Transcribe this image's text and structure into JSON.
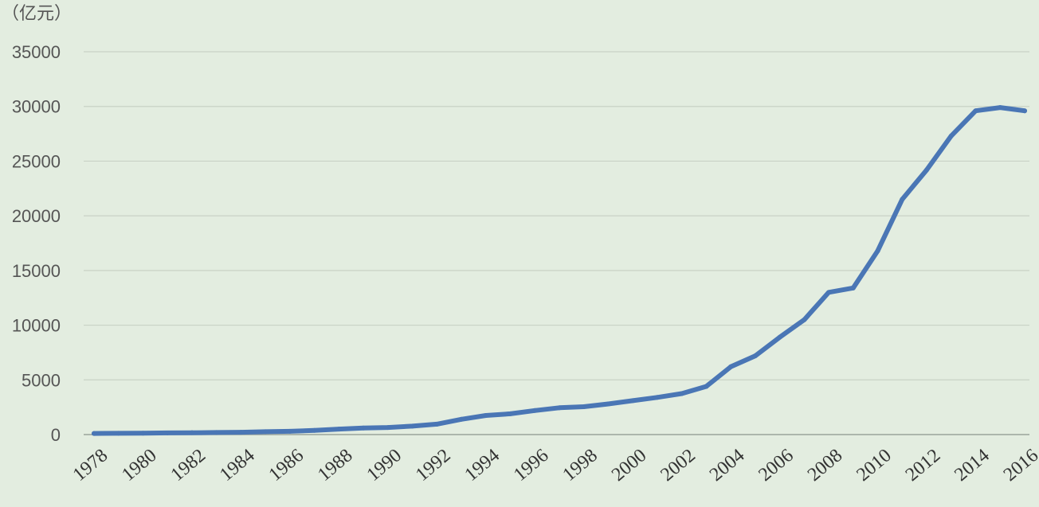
{
  "chart_data": {
    "type": "line",
    "title": "",
    "xlabel": "",
    "ylabel": "",
    "unit_label": "（亿元）",
    "x": [
      1978,
      1979,
      1980,
      1981,
      1982,
      1983,
      1984,
      1985,
      1986,
      1987,
      1988,
      1989,
      1990,
      1991,
      1992,
      1993,
      1994,
      1995,
      1996,
      1997,
      1998,
      1999,
      2000,
      2001,
      2002,
      2003,
      2004,
      2005,
      2006,
      2007,
      2008,
      2009,
      2010,
      2011,
      2012,
      2013,
      2014,
      2015,
      2016
    ],
    "x_tick_labels": [
      "1978",
      "1980",
      "1982",
      "1984",
      "1986",
      "1988",
      "1990",
      "1992",
      "1994",
      "1996",
      "1998",
      "2000",
      "2002",
      "2004",
      "2006",
      "2008",
      "2010",
      "2012",
      "2014",
      "2016"
    ],
    "y_ticks": [
      0,
      5000,
      10000,
      15000,
      20000,
      25000,
      30000,
      35000
    ],
    "ylim": [
      0,
      35000
    ],
    "grid": true,
    "legend": "none",
    "series": [
      {
        "color": "#4a76b5",
        "values": [
          100,
          120,
          130,
          150,
          170,
          190,
          210,
          260,
          300,
          380,
          500,
          600,
          650,
          770,
          950,
          1400,
          1750,
          1900,
          2200,
          2450,
          2550,
          2800,
          3100,
          3400,
          3750,
          4400,
          6200,
          7200,
          8900,
          10500,
          13000,
          13400,
          16800,
          21500,
          24200,
          27300,
          29600,
          29900,
          29600
        ]
      }
    ]
  }
}
